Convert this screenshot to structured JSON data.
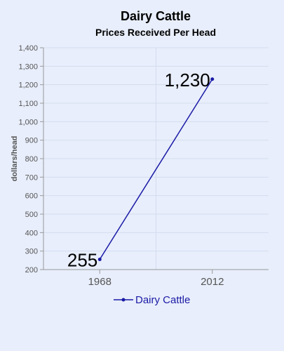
{
  "chart_data": {
    "type": "line",
    "title": "Dairy Cattle",
    "subtitle": "Prices Received Per Head",
    "xlabel": "",
    "ylabel": "dollars/head",
    "categories": [
      "1968",
      "2012"
    ],
    "series": [
      {
        "name": "Dairy Cattle",
        "values": [
          255,
          1230
        ]
      }
    ],
    "data_labels": [
      "255",
      "1,230"
    ],
    "ylim": [
      200,
      1400
    ],
    "y_ticks": [
      200,
      300,
      400,
      500,
      600,
      700,
      800,
      900,
      1000,
      1100,
      1200,
      1300,
      1400
    ],
    "y_tick_labels": [
      "200",
      "300",
      "400",
      "500",
      "600",
      "700",
      "800",
      "900",
      "1,000",
      "1,100",
      "1,200",
      "1,300",
      "1,400"
    ],
    "grid": true,
    "legend_position": "bottom",
    "colors": {
      "background": "#e8eefb",
      "series": "#1a1aa6",
      "grid": "#d4dcee",
      "axis": "#999999"
    }
  }
}
